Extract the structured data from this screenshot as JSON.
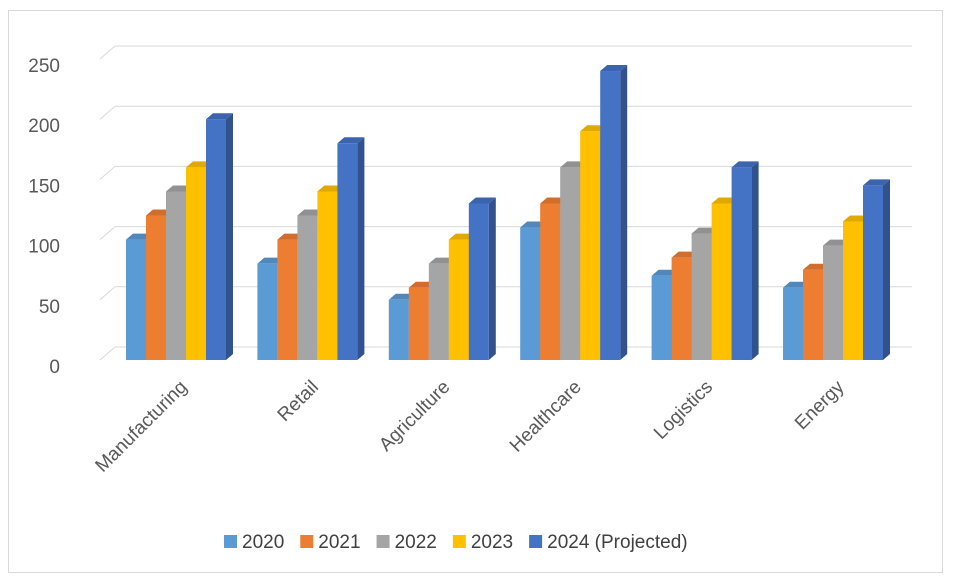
{
  "chart_data": {
    "type": "bar",
    "style": "3d-clustered-column",
    "categories": [
      "Manufacturing",
      "Retail",
      "Agriculture",
      "Healthcare",
      "Logistics",
      "Energy"
    ],
    "series": [
      {
        "name": "2020",
        "color": "#5B9BD5",
        "values": [
          100,
          80,
          50,
          110,
          70,
          60
        ]
      },
      {
        "name": "2021",
        "color": "#ED7D31",
        "values": [
          120,
          100,
          60,
          130,
          85,
          75
        ]
      },
      {
        "name": "2022",
        "color": "#A5A5A5",
        "values": [
          140,
          120,
          80,
          160,
          105,
          95
        ]
      },
      {
        "name": "2023",
        "color": "#FFC000",
        "values": [
          160,
          140,
          100,
          190,
          130,
          115
        ]
      },
      {
        "name": "2024 (Projected)",
        "color": "#4472C4",
        "values": [
          200,
          180,
          130,
          240,
          160,
          145
        ]
      }
    ],
    "yticks": [
      0,
      50,
      100,
      150,
      200,
      250
    ],
    "ylim": [
      0,
      250
    ],
    "grid": true,
    "legend_position": "bottom",
    "title": "",
    "xlabel": "",
    "ylabel": ""
  }
}
